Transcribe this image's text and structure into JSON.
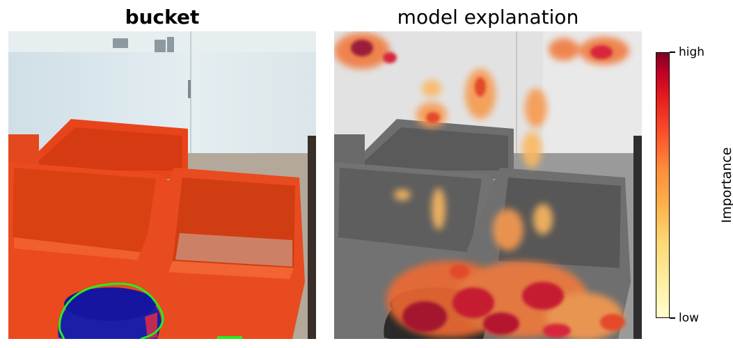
{
  "left_panel": {
    "title": "bucket"
  },
  "right_panel": {
    "title": "model explanation"
  },
  "colorbar": {
    "label": "Importance",
    "high_label": "high",
    "low_label": "low",
    "colormap": [
      "#ffffcc",
      "#ffeda0",
      "#fed976",
      "#feb24c",
      "#fd8d3c",
      "#fc4e2a",
      "#e31a1c",
      "#bd0026",
      "#800026"
    ]
  },
  "colors": {
    "outline": "#22ee22",
    "bucket": "#1a1aa8",
    "crate": "#e8451c",
    "wall": "#dde8ec"
  }
}
